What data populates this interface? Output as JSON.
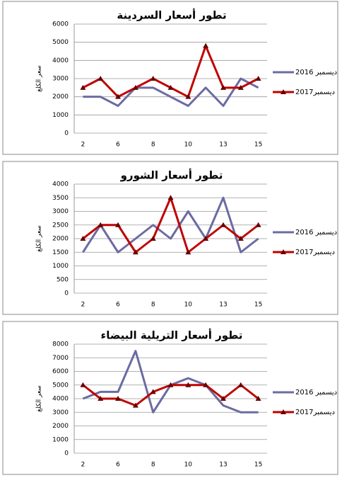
{
  "chart_data": [
    {
      "type": "line",
      "title": "تطور أسعار السردينة",
      "y_label": "سعر الكلغ",
      "categories": [
        "2",
        null,
        "6",
        null,
        "8",
        null,
        "10",
        null,
        "13",
        null,
        "15"
      ],
      "series": [
        {
          "name": "ديسمبر 2016",
          "color": "#6b6ba3",
          "marker": "none",
          "values": [
            2000,
            2000,
            1500,
            2500,
            2500,
            2000,
            1500,
            2500,
            1500,
            3000,
            2500
          ]
        },
        {
          "name": "ديسمبر2017",
          "color": "#c00000",
          "marker": "triangle",
          "values": [
            2500,
            3000,
            2000,
            2500,
            3000,
            2500,
            2000,
            4800,
            2500,
            2500,
            3000
          ]
        }
      ],
      "ylim": [
        0,
        6000
      ],
      "yticks": [
        0,
        1000,
        2000,
        3000,
        4000,
        5000,
        6000
      ],
      "grid": true
    },
    {
      "type": "line",
      "title": "تطور أسعار الشورو",
      "y_label": "سعر الكلغ",
      "categories": [
        "2",
        null,
        "6",
        null,
        "8",
        null,
        "10",
        null,
        "13",
        null,
        "15"
      ],
      "series": [
        {
          "name": "ديسمبر 2016",
          "color": "#6b6ba3",
          "marker": "none",
          "values": [
            1500,
            2500,
            1500,
            2000,
            2500,
            2000,
            3000,
            2000,
            3500,
            1500,
            2000
          ]
        },
        {
          "name": "ديسمبر2017",
          "color": "#c00000",
          "marker": "triangle",
          "values": [
            2000,
            2500,
            2500,
            1500,
            2000,
            3500,
            1500,
            2000,
            2500,
            2000,
            2500
          ]
        }
      ],
      "ylim": [
        0,
        4000
      ],
      "yticks": [
        0,
        500,
        1000,
        1500,
        2000,
        2500,
        3000,
        3500,
        4000
      ],
      "grid": true
    },
    {
      "type": "line",
      "title": "تطور أسعار التريلية البيضاء",
      "y_label": "سعر الكلغ",
      "categories": [
        "2",
        null,
        "6",
        null,
        "8",
        null,
        "10",
        null,
        "13",
        null,
        "15"
      ],
      "series": [
        {
          "name": "ديسمبر 2016",
          "color": "#6b6ba3",
          "marker": "none",
          "values": [
            4000,
            4500,
            4500,
            7500,
            3000,
            5000,
            5500,
            5000,
            3500,
            3000,
            3000
          ]
        },
        {
          "name": "ديسمبر2017",
          "color": "#c00000",
          "marker": "triangle",
          "values": [
            5000,
            4000,
            4000,
            3500,
            4500,
            5000,
            5000,
            5000,
            4000,
            5000,
            4000
          ]
        }
      ],
      "ylim": [
        0,
        8000
      ],
      "yticks": [
        0,
        1000,
        2000,
        3000,
        4000,
        5000,
        6000,
        7000,
        8000
      ],
      "grid": true
    }
  ]
}
